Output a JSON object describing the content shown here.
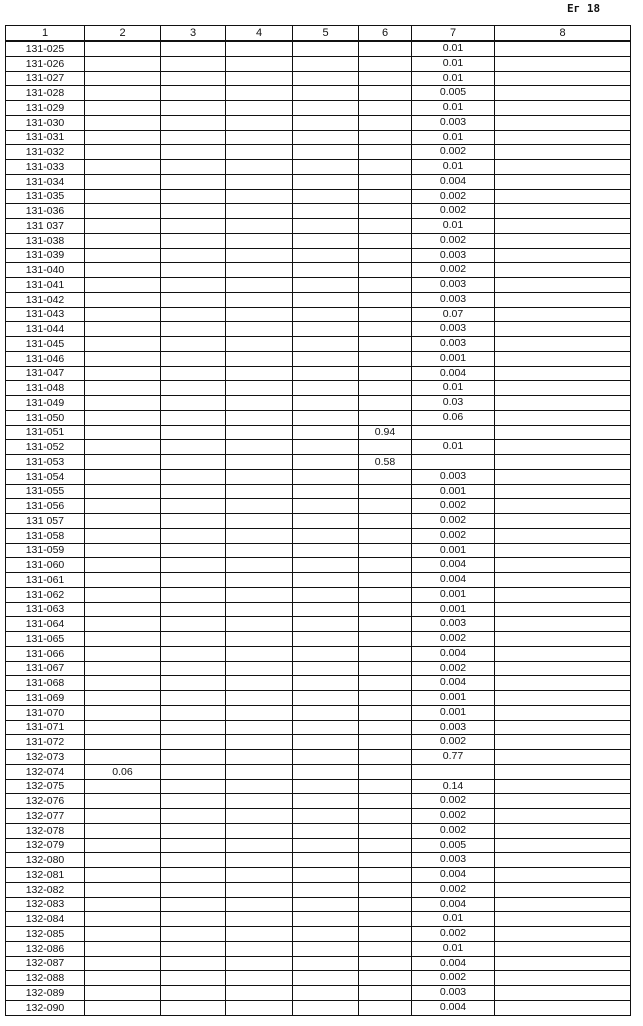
{
  "page_label": "Ег 18",
  "table": {
    "headers": [
      "1",
      "2",
      "3",
      "4",
      "5",
      "6",
      "7",
      "8"
    ],
    "rows": [
      [
        "131-025",
        "",
        "",
        "",
        "",
        "",
        "0.01",
        ""
      ],
      [
        "131-026",
        "",
        "",
        "",
        "",
        "",
        "0.01",
        ""
      ],
      [
        "131-027",
        "",
        "",
        "",
        "",
        "",
        "0.01",
        ""
      ],
      [
        "131-028",
        "",
        "",
        "",
        "",
        "",
        "0.005",
        ""
      ],
      [
        "131-029",
        "",
        "",
        "",
        "",
        "",
        "0.01",
        ""
      ],
      [
        "131-030",
        "",
        "",
        "",
        "",
        "",
        "0.003",
        ""
      ],
      [
        "131-031",
        "",
        "",
        "",
        "",
        "",
        "0.01",
        ""
      ],
      [
        "131-032",
        "",
        "",
        "",
        "",
        "",
        "0.002",
        ""
      ],
      [
        "131-033",
        "",
        "",
        "",
        "",
        "",
        "0.01",
        ""
      ],
      [
        "131-034",
        "",
        "",
        "",
        "",
        "",
        "0.004",
        ""
      ],
      [
        "131-035",
        "",
        "",
        "",
        "",
        "",
        "0.002",
        ""
      ],
      [
        "131-036",
        "",
        "",
        "",
        "",
        "",
        "0.002",
        ""
      ],
      [
        "131 037",
        "",
        "",
        "",
        "",
        "",
        "0.01",
        ""
      ],
      [
        "131-038",
        "",
        "",
        "",
        "",
        "",
        "0.002",
        ""
      ],
      [
        "131-039",
        "",
        "",
        "",
        "",
        "",
        "0.003",
        ""
      ],
      [
        "131-040",
        "",
        "",
        "",
        "",
        "",
        "0.002",
        ""
      ],
      [
        "131-041",
        "",
        "",
        "",
        "",
        "",
        "0.003",
        ""
      ],
      [
        "131-042",
        "",
        "",
        "",
        "",
        "",
        "0.003",
        ""
      ],
      [
        "131-043",
        "",
        "",
        "",
        "",
        "",
        "0.07",
        ""
      ],
      [
        "131-044",
        "",
        "",
        "",
        "",
        "",
        "0.003",
        ""
      ],
      [
        "131-045",
        "",
        "",
        "",
        "",
        "",
        "0.003",
        ""
      ],
      [
        "131-046",
        "",
        "",
        "",
        "",
        "",
        "0.001",
        ""
      ],
      [
        "131-047",
        "",
        "",
        "",
        "",
        "",
        "0.004",
        ""
      ],
      [
        "131-048",
        "",
        "",
        "",
        "",
        "",
        "0.01",
        ""
      ],
      [
        "131-049",
        "",
        "",
        "",
        "",
        "",
        "0.03",
        ""
      ],
      [
        "131-050",
        "",
        "",
        "",
        "",
        "",
        "0.06",
        ""
      ],
      [
        "131-051",
        "",
        "",
        "",
        "",
        "0.94",
        "",
        ""
      ],
      [
        "131-052",
        "",
        "",
        "",
        "",
        "",
        "0.01",
        ""
      ],
      [
        "131-053",
        "",
        "",
        "",
        "",
        "0.58",
        "",
        ""
      ],
      [
        "131-054",
        "",
        "",
        "",
        "",
        "",
        "0.003",
        ""
      ],
      [
        "131-055",
        "",
        "",
        "",
        "",
        "",
        "0.001",
        ""
      ],
      [
        "131-056",
        "",
        "",
        "",
        "",
        "",
        "0.002",
        ""
      ],
      [
        "131 057",
        "",
        "",
        "",
        "",
        "",
        "0.002",
        ""
      ],
      [
        "131-058",
        "",
        "",
        "",
        "",
        "",
        "0.002",
        ""
      ],
      [
        "131-059",
        "",
        "",
        "",
        "",
        "",
        "0.001",
        ""
      ],
      [
        "131-060",
        "",
        "",
        "",
        "",
        "",
        "0.004",
        ""
      ],
      [
        "131-061",
        "",
        "",
        "",
        "",
        "",
        "0.004",
        ""
      ],
      [
        "131-062",
        "",
        "",
        "",
        "",
        "",
        "0.001",
        ""
      ],
      [
        "131-063",
        "",
        "",
        "",
        "",
        "",
        "0.001",
        ""
      ],
      [
        "131-064",
        "",
        "",
        "",
        "",
        "",
        "0.003",
        ""
      ],
      [
        "131-065",
        "",
        "",
        "",
        "",
        "",
        "0.002",
        ""
      ],
      [
        "131-066",
        "",
        "",
        "",
        "",
        "",
        "0.004",
        ""
      ],
      [
        "131-067",
        "",
        "",
        "",
        "",
        "",
        "0.002",
        ""
      ],
      [
        "131-068",
        "",
        "",
        "",
        "",
        "",
        "0.004",
        ""
      ],
      [
        "131-069",
        "",
        "",
        "",
        "",
        "",
        "0.001",
        ""
      ],
      [
        "131-070",
        "",
        "",
        "",
        "",
        "",
        "0.001",
        ""
      ],
      [
        "131-071",
        "",
        "",
        "",
        "",
        "",
        "0.003",
        ""
      ],
      [
        "131-072",
        "",
        "",
        "",
        "",
        "",
        "0.002",
        ""
      ],
      [
        "132-073",
        "",
        "",
        "",
        "",
        "",
        "0.77",
        ""
      ],
      [
        "132-074",
        "0.06",
        "",
        "",
        "",
        "",
        "",
        ""
      ],
      [
        "132-075",
        "",
        "",
        "",
        "",
        "",
        "0.14",
        ""
      ],
      [
        "132-076",
        "",
        "",
        "",
        "",
        "",
        "0.002",
        ""
      ],
      [
        "132-077",
        "",
        "",
        "",
        "",
        "",
        "0.002",
        ""
      ],
      [
        "132-078",
        "",
        "",
        "",
        "",
        "",
        "0.002",
        ""
      ],
      [
        "132-079",
        "",
        "",
        "",
        "",
        "",
        "0.005",
        ""
      ],
      [
        "132-080",
        "",
        "",
        "",
        "",
        "",
        "0.003",
        ""
      ],
      [
        "132-081",
        "",
        "",
        "",
        "",
        "",
        "0.004",
        ""
      ],
      [
        "132-082",
        "",
        "",
        "",
        "",
        "",
        "0.002",
        ""
      ],
      [
        "132-083",
        "",
        "",
        "",
        "",
        "",
        "0.004",
        ""
      ],
      [
        "132-084",
        "",
        "",
        "",
        "",
        "",
        "0.01",
        ""
      ],
      [
        "132-085",
        "",
        "",
        "",
        "",
        "",
        "0.002",
        ""
      ],
      [
        "132-086",
        "",
        "",
        "",
        "",
        "",
        "0.01",
        ""
      ],
      [
        "132-087",
        "",
        "",
        "",
        "",
        "",
        "0.004",
        ""
      ],
      [
        "132-088",
        "",
        "",
        "",
        "",
        "",
        "0.002",
        ""
      ],
      [
        "132-089",
        "",
        "",
        "",
        "",
        "",
        "0.003",
        ""
      ],
      [
        "132-090",
        "",
        "",
        "",
        "",
        "",
        "0.004",
        ""
      ]
    ]
  }
}
